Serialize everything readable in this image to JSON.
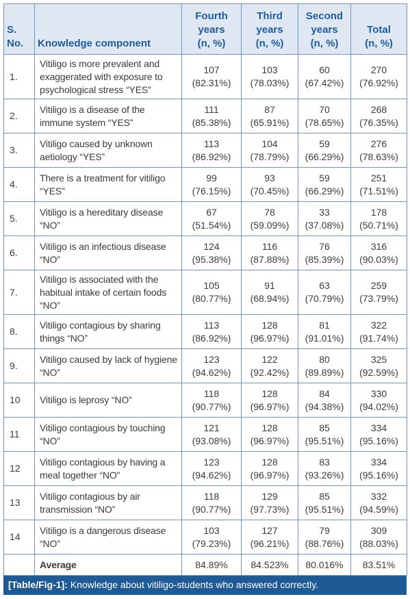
{
  "table": {
    "header": [
      [
        "S.",
        "No."
      ],
      [
        "Knowledge component"
      ],
      [
        "Fourth",
        "years",
        "(n, %)"
      ],
      [
        "Third",
        "years",
        "(n, %)"
      ],
      [
        "Second",
        "years",
        "(n, %)"
      ],
      [
        "Total",
        "(n, %)"
      ]
    ],
    "rows": [
      {
        "no": "1.",
        "component": "Vitiligo is more prevalent and exaggerated with exposure to psychological stress “YES”",
        "cells": [
          [
            "107",
            "(82.31%)"
          ],
          [
            "103",
            "(78.03%)"
          ],
          [
            "60",
            "(67.42%)"
          ],
          [
            "270",
            "(76.92%)"
          ]
        ]
      },
      {
        "no": "2.",
        "component": "Vitiligo is a disease of the immune system “YES”",
        "cells": [
          [
            "111",
            "(85.38%)"
          ],
          [
            "87",
            "(65.91%)"
          ],
          [
            "70",
            "(78.65%)"
          ],
          [
            "268",
            "(76.35%)"
          ]
        ]
      },
      {
        "no": "3.",
        "component": "Vitiligo caused by unknown aetiology “YES”",
        "cells": [
          [
            "113",
            "(86.92%)"
          ],
          [
            "104",
            "(78.79%)"
          ],
          [
            "59",
            "(66.29%)"
          ],
          [
            "276",
            "(78.63%)"
          ]
        ]
      },
      {
        "no": "4.",
        "component": "There is a treatment for vitiligo “YES”",
        "cells": [
          [
            "99",
            "(76.15%)"
          ],
          [
            "93",
            "(70.45%)"
          ],
          [
            "59",
            "(66.29%)"
          ],
          [
            "251",
            "(71.51%)"
          ]
        ]
      },
      {
        "no": "5.",
        "component": "Vitiligo is a hereditary disease “NO”",
        "cells": [
          [
            "67",
            "(51.54%)"
          ],
          [
            "78",
            "(59.09%)"
          ],
          [
            "33",
            "(37.08%)"
          ],
          [
            "178",
            "(50.71%)"
          ]
        ]
      },
      {
        "no": "6.",
        "component": "Vitiligo is an infectious disease “NO”",
        "cells": [
          [
            "124",
            "(95.38%)"
          ],
          [
            "116",
            "(87.88%)"
          ],
          [
            "76",
            "(85.39%)"
          ],
          [
            "316",
            "(90.03%)"
          ]
        ]
      },
      {
        "no": "7.",
        "component": "Vitiligo is associated with the habitual intake of certain foods “NO”",
        "cells": [
          [
            "105",
            "(80.77%)"
          ],
          [
            "91",
            "(68.94%)"
          ],
          [
            "63",
            "(70.79%)"
          ],
          [
            "259",
            "(73.79%)"
          ]
        ]
      },
      {
        "no": "8.",
        "component": "Vitiligo contagious by sharing things “NO”",
        "cells": [
          [
            "113",
            "(86.92%)"
          ],
          [
            "128",
            "(96.97%)"
          ],
          [
            "81",
            "(91.01%)"
          ],
          [
            "322",
            "(91.74%)"
          ]
        ]
      },
      {
        "no": "9.",
        "component": "Vitiligo caused by lack of hygiene “NO”",
        "cells": [
          [
            "123",
            "(94.62%)"
          ],
          [
            "122",
            "(92.42%)"
          ],
          [
            "80",
            "(89.89%)"
          ],
          [
            "325",
            "(92.59%)"
          ]
        ]
      },
      {
        "no": "10",
        "component": "Vitiligo is leprosy “NO”",
        "cells": [
          [
            "118",
            "(90.77%)"
          ],
          [
            "128",
            "(96.97%)"
          ],
          [
            "84",
            "(94.38%)"
          ],
          [
            "330",
            "(94.02%)"
          ]
        ]
      },
      {
        "no": "11",
        "component": "Vitiligo contagious by touching “NO”",
        "cells": [
          [
            "121",
            "(93.08%)"
          ],
          [
            "128",
            "(96.97%)"
          ],
          [
            "85",
            "(95.51%)"
          ],
          [
            "334",
            "(95.16%)"
          ]
        ]
      },
      {
        "no": "12",
        "component": "Vitiligo contagious by having a meal together “NO”",
        "cells": [
          [
            "123",
            "(94.62%)"
          ],
          [
            "128",
            "(96.97%)"
          ],
          [
            "83",
            "(93.26%)"
          ],
          [
            "334",
            "(95.16%)"
          ]
        ]
      },
      {
        "no": "13",
        "component": "Vitiligo contagious by air transmission “NO”",
        "cells": [
          [
            "118",
            "(90.77%)"
          ],
          [
            "129",
            "(97.73%)"
          ],
          [
            "85",
            "(95.51%)"
          ],
          [
            "332",
            "(94.59%)"
          ]
        ]
      },
      {
        "no": "14",
        "component": "Vitiligo is a dangerous disease “NO”",
        "cells": [
          [
            "103",
            "(79.23%)"
          ],
          [
            "127",
            "(96.21%)"
          ],
          [
            "79",
            "(88.76%)"
          ],
          [
            "309",
            "(88.03%)"
          ]
        ]
      }
    ],
    "average": {
      "label": "Average",
      "values": [
        "84.89%",
        "84.523%",
        "80.016%",
        "83.51%"
      ]
    }
  },
  "caption": {
    "label": "[Table/Fig-1]:",
    "text": "Knowledge about vitiligo-students who answered correctly."
  }
}
